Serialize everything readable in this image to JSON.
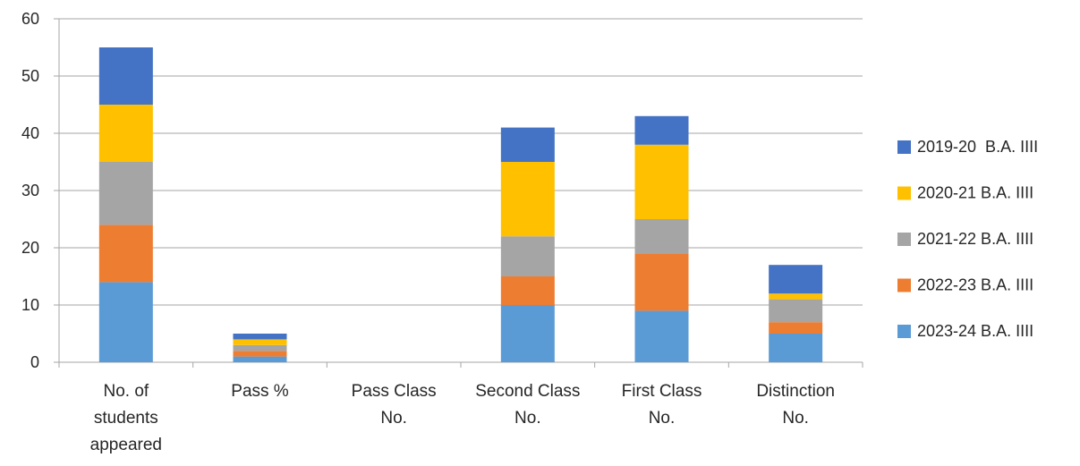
{
  "chart_data": {
    "type": "bar",
    "stacked": true,
    "categories": [
      [
        "No. of",
        "students",
        "appeared"
      ],
      [
        "Pass %"
      ],
      [
        "Pass Class",
        "No."
      ],
      [
        "Second Class",
        "No."
      ],
      [
        "First Class",
        "No."
      ],
      [
        "Distinction",
        "No."
      ]
    ],
    "series": [
      {
        "name": "2023-24 B.A. IIII",
        "color": "#5B9BD5",
        "values": [
          14,
          1,
          0,
          10,
          9,
          5
        ]
      },
      {
        "name": "2022-23 B.A. IIII",
        "color": "#ED7D31",
        "values": [
          10,
          1,
          0,
          5,
          10,
          2
        ]
      },
      {
        "name": "2021-22 B.A. IIII",
        "color": "#A5A5A5",
        "values": [
          11,
          1,
          0,
          7,
          6,
          4
        ]
      },
      {
        "name": "2020-21 B.A. IIII",
        "color": "#FFC000",
        "values": [
          10,
          1,
          0,
          13,
          13,
          1
        ]
      },
      {
        "name": "2019-20  B.A. IIII",
        "color": "#4472C4",
        "values": [
          10,
          1,
          0,
          6,
          5,
          5
        ]
      }
    ],
    "ylim": [
      0,
      60
    ],
    "yticks": [
      0,
      10,
      20,
      30,
      40,
      50,
      60
    ],
    "grid": true,
    "legend_position": "right",
    "legend_order": "reverse",
    "title": "",
    "xlabel": "",
    "ylabel": ""
  }
}
